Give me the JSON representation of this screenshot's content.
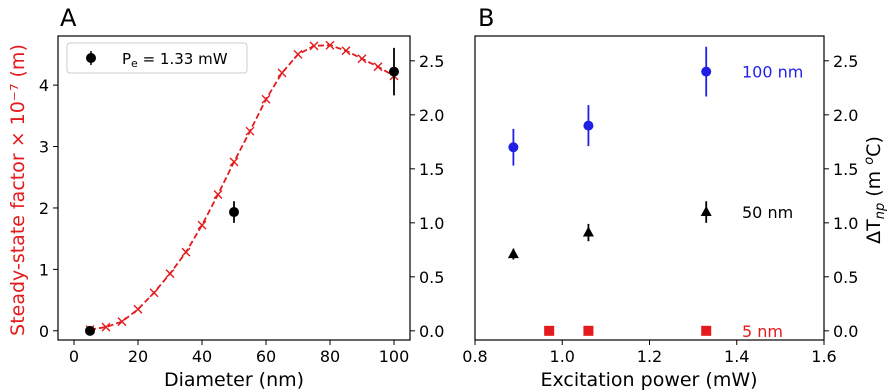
{
  "colors": {
    "red": "#e41a1c",
    "blue": "#1f1fe6",
    "black": "#000000",
    "axis": "#000000"
  },
  "chart_data": [
    {
      "panel_label": "A",
      "type": "line",
      "xlabel": "Diameter (nm)",
      "ylabel": "Steady-state factor × 10⁻⁷ (m)",
      "xlim": [
        -5,
        105
      ],
      "ylim": [
        -0.15,
        4.8
      ],
      "y2lim": [
        -0.085,
        2.73
      ],
      "xticks": [
        "0",
        "20",
        "40",
        "60",
        "80",
        "100"
      ],
      "xtick_values": [
        0,
        20,
        40,
        60,
        80,
        100
      ],
      "yticks": [
        "0",
        "1",
        "2",
        "3",
        "4"
      ],
      "ytick_values": [
        0,
        1,
        2,
        3,
        4
      ],
      "y2ticks": [
        "0.0",
        "0.5",
        "1.0",
        "1.5",
        "2.0",
        "2.5"
      ],
      "y2tick_values": [
        0,
        0.5,
        1.0,
        1.5,
        2.0,
        2.5
      ],
      "legend": {
        "placement": "top-left",
        "label": "P",
        "label_sub": "e",
        "label_rest": " = 1.33 mW"
      },
      "series": [
        {
          "style": "dashed-x",
          "color": "red",
          "axis": "left",
          "x": [
            5,
            10,
            15,
            20,
            25,
            30,
            35,
            40,
            45,
            50,
            55,
            60,
            65,
            70,
            75,
            80,
            85,
            90,
            95,
            100
          ],
          "y": [
            0.02,
            0.06,
            0.15,
            0.35,
            0.62,
            0.93,
            1.28,
            1.72,
            2.22,
            2.75,
            3.25,
            3.77,
            4.2,
            4.5,
            4.64,
            4.65,
            4.56,
            4.43,
            4.3,
            4.15
          ]
        },
        {
          "style": "errorbar",
          "color": "black",
          "marker": "circle",
          "axis": "right",
          "x": [
            5,
            50,
            100
          ],
          "y": [
            0.0,
            1.1,
            2.4
          ],
          "err": [
            0.03,
            0.1,
            0.22
          ]
        }
      ]
    },
    {
      "panel_label": "B",
      "type": "scatter",
      "xlabel": "Excitation power (mW)",
      "ylabel": "ΔT",
      "ylabel_sub": "np",
      "ylabel_rest": " (m ",
      "ylabel_sup": "o",
      "ylabel_end": "C)",
      "xlim": [
        0.8,
        1.6
      ],
      "ylim": [
        -0.085,
        2.73
      ],
      "xticks": [
        "0.8",
        "1.0",
        "1.2",
        "1.4",
        "1.6"
      ],
      "xtick_values": [
        0.8,
        1.0,
        1.2,
        1.4,
        1.6
      ],
      "yticks": [
        "0.0",
        "0.5",
        "1.0",
        "1.5",
        "2.0",
        "2.5"
      ],
      "ytick_values": [
        0,
        0.5,
        1.0,
        1.5,
        2.0,
        2.5
      ],
      "series": [
        {
          "name": "100 nm",
          "color": "blue",
          "marker": "circle",
          "x": [
            0.888,
            1.06,
            1.33
          ],
          "y": [
            1.7,
            1.9,
            2.4
          ],
          "err": [
            0.17,
            0.19,
            0.23
          ]
        },
        {
          "name": "50 nm",
          "color": "black",
          "marker": "triangle",
          "x": [
            0.888,
            1.06,
            1.33
          ],
          "y": [
            0.71,
            0.91,
            1.1
          ],
          "err": [
            0.05,
            0.08,
            0.1
          ]
        },
        {
          "name": "5 nm",
          "color": "red",
          "marker": "square",
          "x": [
            0.97,
            1.06,
            1.33
          ],
          "y": [
            0.0,
            0.0,
            0.0
          ],
          "err": [
            0,
            0,
            0
          ]
        }
      ]
    }
  ]
}
